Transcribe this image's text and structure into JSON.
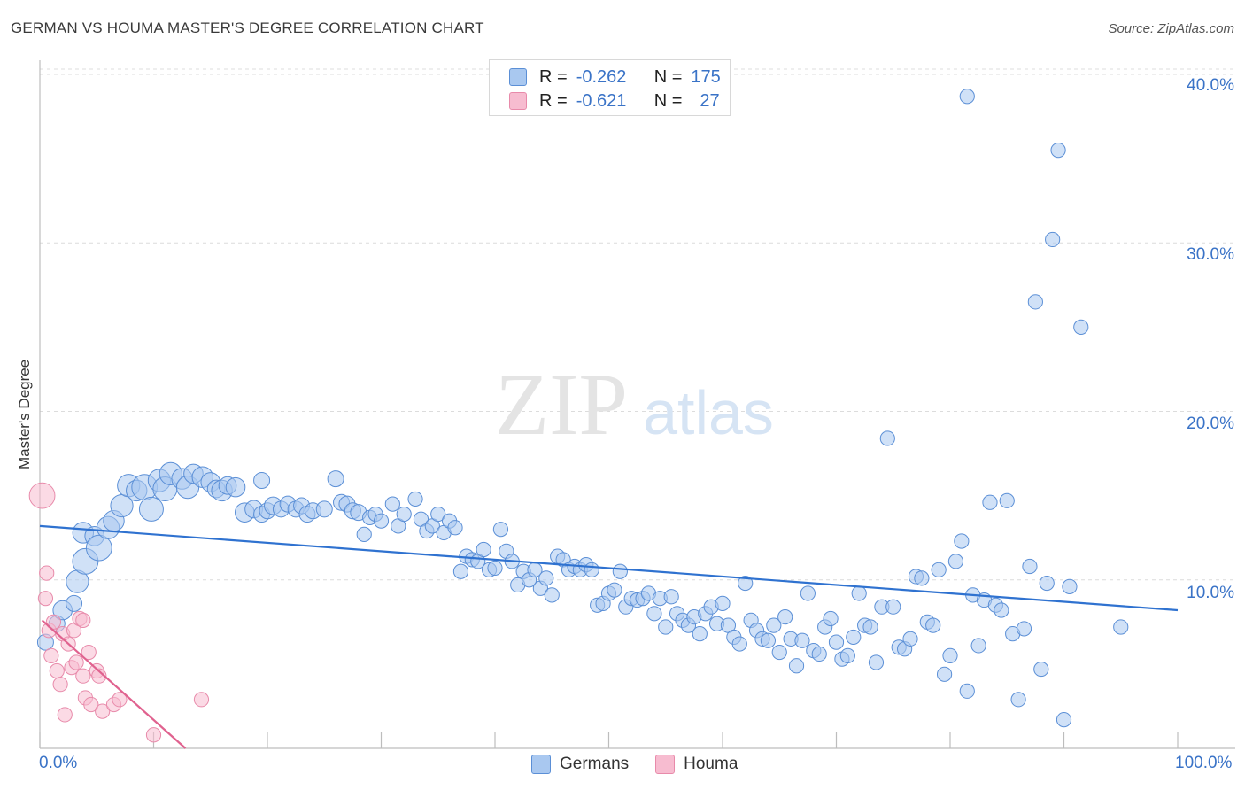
{
  "title": "GERMAN VS HOUMA MASTER'S DEGREE CORRELATION CHART",
  "source": "Source: ZipAtlas.com",
  "watermark": {
    "zip": "ZIP",
    "atlas": "atlas"
  },
  "colors": {
    "germans_fill": "#a9c8f0",
    "germans_stroke": "#5b8fd6",
    "germans_line": "#2f72d0",
    "houma_fill": "#f7bcd0",
    "houma_stroke": "#e88aaa",
    "houma_line": "#e0628f",
    "tick_text": "#3a73c7"
  },
  "legend": {
    "rows": [
      {
        "r_label": "R =",
        "r_value": "-0.262",
        "n_label": "N =",
        "n_value": "175"
      },
      {
        "r_label": "R =",
        "r_value": "-0.621",
        "n_label": "N =",
        "n_value": "27"
      }
    ]
  },
  "bottom_legend": {
    "germans": "Germans",
    "houma": "Houma"
  },
  "chart_data": {
    "type": "scatter",
    "title": "GERMAN VS HOUMA MASTER'S DEGREE CORRELATION CHART",
    "xlabel": "",
    "ylabel": "Master's Degree",
    "xlim": [
      0,
      100
    ],
    "ylim": [
      0,
      40
    ],
    "x_tick_labels": [
      "0.0%",
      "100.0%"
    ],
    "y_tick_labels": [
      "10.0%",
      "20.0%",
      "30.0%",
      "40.0%"
    ],
    "y_ticks": [
      10,
      20,
      30,
      40
    ],
    "grid": true,
    "legend_position": "top-center",
    "series": [
      {
        "name": "Germans",
        "r": -0.262,
        "n": 175,
        "trend": [
          [
            0,
            13.2
          ],
          [
            100,
            8.2
          ]
        ],
        "points": [
          [
            0.5,
            6.3,
            1
          ],
          [
            1.5,
            7.4,
            1
          ],
          [
            2,
            8.2,
            1.2
          ],
          [
            3,
            8.6,
            1
          ],
          [
            3.3,
            9.9,
            1.4
          ],
          [
            3.8,
            12.8,
            1.3
          ],
          [
            4,
            11.1,
            1.6
          ],
          [
            4.8,
            12.6,
            1.2
          ],
          [
            5.2,
            11.9,
            1.6
          ],
          [
            6,
            13.1,
            1.4
          ],
          [
            6.5,
            13.5,
            1.3
          ],
          [
            7.2,
            14.4,
            1.4
          ],
          [
            7.8,
            15.6,
            1.4
          ],
          [
            8.5,
            15.3,
            1.3
          ],
          [
            9.2,
            15.5,
            1.6
          ],
          [
            9.8,
            14.2,
            1.5
          ],
          [
            10.5,
            15.9,
            1.4
          ],
          [
            11,
            15.4,
            1.5
          ],
          [
            11.5,
            16.3,
            1.4
          ],
          [
            12.5,
            16.0,
            1.3
          ],
          [
            13,
            15.5,
            1.4
          ],
          [
            13.5,
            16.3,
            1.2
          ],
          [
            14.3,
            16.1,
            1.3
          ],
          [
            15,
            15.8,
            1.2
          ],
          [
            15.5,
            15.4,
            1.1
          ],
          [
            16,
            15.3,
            1.3
          ],
          [
            16.5,
            15.6,
            1.1
          ],
          [
            17.2,
            15.5,
            1.2
          ],
          [
            18,
            14.0,
            1.2
          ],
          [
            18.8,
            14.2,
            1.1
          ],
          [
            19.5,
            15.9,
            1.0
          ],
          [
            19.5,
            13.9,
            1.0
          ],
          [
            20,
            14.1,
            1.0
          ],
          [
            20.5,
            14.4,
            1.1
          ],
          [
            21.2,
            14.2,
            1.0
          ],
          [
            21.8,
            14.5,
            1.0
          ],
          [
            22.5,
            14.2,
            1.0
          ],
          [
            23,
            14.4,
            1.0
          ],
          [
            23.5,
            13.9,
            1.0
          ],
          [
            24,
            14.1,
            1.0
          ],
          [
            25,
            14.2,
            1.0
          ],
          [
            26,
            16.0,
            1.0
          ],
          [
            26.5,
            14.6,
            1.0
          ],
          [
            27,
            14.5,
            1.0
          ],
          [
            27.5,
            14.1,
            1.0
          ],
          [
            28,
            14.0,
            1.0
          ],
          [
            28.5,
            12.7,
            0.9
          ],
          [
            29,
            13.7,
            0.9
          ],
          [
            29.5,
            13.9,
            0.9
          ],
          [
            30,
            13.5,
            0.9
          ],
          [
            31,
            14.5,
            0.9
          ],
          [
            31.5,
            13.2,
            0.9
          ],
          [
            32,
            13.9,
            0.9
          ],
          [
            33,
            14.8,
            0.9
          ],
          [
            33.5,
            13.6,
            0.9
          ],
          [
            34,
            12.9,
            0.9
          ],
          [
            34.5,
            13.2,
            0.9
          ],
          [
            35,
            13.9,
            0.9
          ],
          [
            35.5,
            12.8,
            0.9
          ],
          [
            36,
            13.5,
            0.9
          ],
          [
            36.5,
            13.1,
            0.9
          ],
          [
            37,
            10.5,
            0.9
          ],
          [
            37.5,
            11.4,
            0.9
          ],
          [
            38,
            11.2,
            0.9
          ],
          [
            38.5,
            11.1,
            0.9
          ],
          [
            39,
            11.8,
            0.9
          ],
          [
            39.5,
            10.6,
            0.9
          ],
          [
            40,
            10.7,
            0.9
          ],
          [
            40.5,
            13.0,
            0.9
          ],
          [
            41,
            11.7,
            0.9
          ],
          [
            41.5,
            11.1,
            0.9
          ],
          [
            42,
            9.7,
            0.9
          ],
          [
            42.5,
            10.5,
            0.9
          ],
          [
            43,
            10.0,
            0.9
          ],
          [
            43.5,
            10.6,
            0.9
          ],
          [
            44,
            9.5,
            0.9
          ],
          [
            44.5,
            10.1,
            0.9
          ],
          [
            45,
            9.1,
            0.9
          ],
          [
            45.5,
            11.4,
            0.9
          ],
          [
            46,
            11.2,
            0.9
          ],
          [
            46.5,
            10.6,
            0.9
          ],
          [
            47,
            10.8,
            0.9
          ],
          [
            47.5,
            10.6,
            0.9
          ],
          [
            48,
            10.9,
            0.9
          ],
          [
            48.5,
            10.6,
            0.9
          ],
          [
            49,
            8.5,
            0.9
          ],
          [
            49.5,
            8.6,
            0.9
          ],
          [
            50,
            9.2,
            0.9
          ],
          [
            50.5,
            9.4,
            0.9
          ],
          [
            51,
            10.5,
            0.9
          ],
          [
            51.5,
            8.4,
            0.9
          ],
          [
            52,
            8.9,
            0.9
          ],
          [
            52.5,
            8.8,
            0.9
          ],
          [
            53,
            8.9,
            0.9
          ],
          [
            53.5,
            9.2,
            0.9
          ],
          [
            54,
            8.0,
            0.9
          ],
          [
            54.5,
            8.9,
            0.9
          ],
          [
            55,
            7.2,
            0.9
          ],
          [
            55.5,
            9.0,
            0.9
          ],
          [
            56,
            8.0,
            0.9
          ],
          [
            56.5,
            7.6,
            0.9
          ],
          [
            57,
            7.3,
            0.9
          ],
          [
            57.5,
            7.8,
            0.9
          ],
          [
            58,
            6.8,
            0.9
          ],
          [
            58.5,
            8.0,
            0.9
          ],
          [
            59,
            8.4,
            0.9
          ],
          [
            59.5,
            7.4,
            0.9
          ],
          [
            60,
            8.6,
            0.9
          ],
          [
            60.5,
            7.3,
            0.9
          ],
          [
            61,
            6.6,
            0.9
          ],
          [
            61.5,
            6.2,
            0.9
          ],
          [
            62,
            9.8,
            0.9
          ],
          [
            62.5,
            7.6,
            0.9
          ],
          [
            63,
            7.0,
            0.9
          ],
          [
            63.5,
            6.5,
            0.9
          ],
          [
            64,
            6.4,
            0.9
          ],
          [
            64.5,
            7.3,
            0.9
          ],
          [
            65,
            5.7,
            0.9
          ],
          [
            65.5,
            7.8,
            0.9
          ],
          [
            66,
            6.5,
            0.9
          ],
          [
            66.5,
            4.9,
            0.9
          ],
          [
            67,
            6.4,
            0.9
          ],
          [
            67.5,
            9.2,
            0.9
          ],
          [
            68,
            5.8,
            0.9
          ],
          [
            68.5,
            5.6,
            0.9
          ],
          [
            69,
            7.2,
            0.9
          ],
          [
            69.5,
            7.7,
            0.9
          ],
          [
            70,
            6.3,
            0.9
          ],
          [
            70.5,
            5.3,
            0.9
          ],
          [
            71,
            5.5,
            0.9
          ],
          [
            71.5,
            6.6,
            0.9
          ],
          [
            72,
            9.2,
            0.9
          ],
          [
            72.5,
            7.3,
            0.9
          ],
          [
            73,
            7.2,
            0.9
          ],
          [
            73.5,
            5.1,
            0.9
          ],
          [
            74,
            8.4,
            0.9
          ],
          [
            74.5,
            18.4,
            0.9
          ],
          [
            75,
            8.4,
            0.9
          ],
          [
            75.5,
            6.0,
            0.9
          ],
          [
            76,
            5.9,
            0.9
          ],
          [
            76.5,
            6.5,
            0.9
          ],
          [
            77,
            10.2,
            0.9
          ],
          [
            77.5,
            10.1,
            0.9
          ],
          [
            78,
            7.5,
            0.9
          ],
          [
            78.5,
            7.3,
            0.9
          ],
          [
            79,
            10.6,
            0.9
          ],
          [
            79.5,
            4.4,
            0.9
          ],
          [
            80,
            5.5,
            0.9
          ],
          [
            80.5,
            11.1,
            0.9
          ],
          [
            81,
            12.3,
            0.9
          ],
          [
            81.5,
            3.4,
            0.9
          ],
          [
            82,
            9.1,
            0.9
          ],
          [
            82.5,
            6.1,
            0.9
          ],
          [
            83,
            8.8,
            0.9
          ],
          [
            83.5,
            14.6,
            0.9
          ],
          [
            84,
            8.5,
            0.9
          ],
          [
            84.5,
            8.2,
            0.9
          ],
          [
            85,
            14.7,
            0.9
          ],
          [
            85.5,
            6.8,
            0.9
          ],
          [
            86,
            2.9,
            0.9
          ],
          [
            86.5,
            7.1,
            0.9
          ],
          [
            87,
            10.8,
            0.9
          ],
          [
            87.5,
            26.5,
            0.9
          ],
          [
            88,
            4.7,
            0.9
          ],
          [
            88.5,
            9.8,
            0.9
          ],
          [
            89,
            30.2,
            0.9
          ],
          [
            89.5,
            35.5,
            0.9
          ],
          [
            90,
            1.7,
            0.9
          ],
          [
            90.5,
            9.6,
            0.9
          ],
          [
            91.5,
            25.0,
            0.9
          ],
          [
            95,
            7.2,
            0.9
          ],
          [
            81.5,
            38.7,
            0.9
          ]
        ]
      },
      {
        "name": "Houma",
        "r": -0.621,
        "n": 27,
        "trend": [
          [
            0.2,
            7.6
          ],
          [
            12.8,
            0
          ]
        ],
        "points": [
          [
            0.2,
            15.0,
            1.6
          ],
          [
            0.5,
            8.9,
            0.9
          ],
          [
            0.6,
            10.4,
            0.9
          ],
          [
            0.8,
            7.0,
            0.9
          ],
          [
            1.0,
            5.5,
            0.9
          ],
          [
            1.2,
            7.5,
            0.9
          ],
          [
            1.5,
            4.6,
            0.9
          ],
          [
            1.8,
            3.8,
            0.9
          ],
          [
            2.0,
            6.8,
            0.9
          ],
          [
            2.2,
            2.0,
            0.9
          ],
          [
            2.5,
            6.2,
            0.9
          ],
          [
            2.8,
            4.8,
            0.9
          ],
          [
            3.0,
            7.0,
            0.9
          ],
          [
            3.2,
            5.1,
            0.9
          ],
          [
            3.5,
            7.7,
            0.9
          ],
          [
            3.8,
            4.3,
            0.9
          ],
          [
            4.0,
            3.0,
            0.9
          ],
          [
            4.3,
            5.7,
            0.9
          ],
          [
            4.5,
            2.6,
            0.9
          ],
          [
            5.0,
            4.6,
            0.9
          ],
          [
            5.2,
            4.3,
            0.9
          ],
          [
            5.5,
            2.2,
            0.9
          ],
          [
            6.5,
            2.6,
            0.9
          ],
          [
            7.0,
            2.9,
            0.9
          ],
          [
            10.0,
            0.8,
            0.9
          ],
          [
            14.2,
            2.9,
            0.9
          ],
          [
            3.8,
            7.6,
            0.9
          ]
        ]
      }
    ]
  }
}
